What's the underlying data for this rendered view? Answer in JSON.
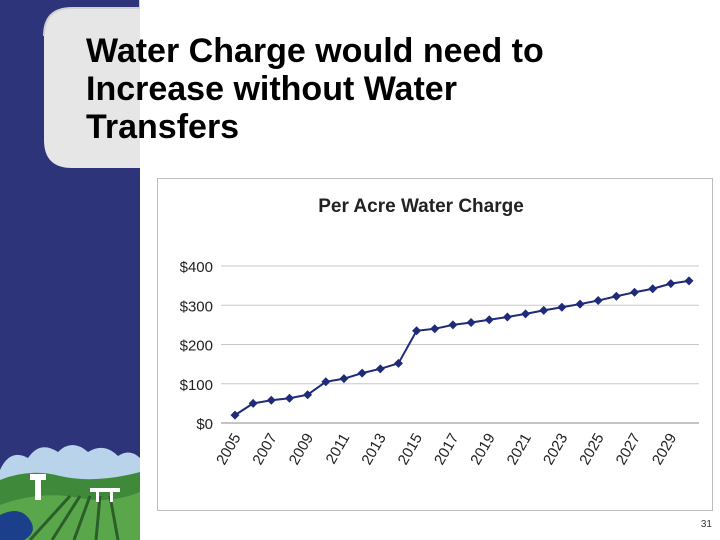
{
  "slide": {
    "title_lines": [
      "Water Charge would need to",
      "Increase without Water",
      "Transfers"
    ],
    "slide_number": "31"
  },
  "chart_data": {
    "type": "line",
    "title": "Per Acre Water Charge",
    "xlabel": "",
    "ylabel": "",
    "x": [
      2005,
      2006,
      2007,
      2008,
      2009,
      2010,
      2011,
      2012,
      2013,
      2014,
      2015,
      2016,
      2017,
      2018,
      2019,
      2020,
      2021,
      2022,
      2023,
      2024,
      2025,
      2026,
      2027,
      2028,
      2029,
      2030
    ],
    "series": [
      {
        "values": [
          20,
          50,
          58,
          63,
          72,
          105,
          113,
          127,
          138,
          152,
          235,
          240,
          250,
          256,
          263,
          270,
          278,
          287,
          295,
          303,
          312,
          323,
          333,
          342,
          355,
          362
        ]
      }
    ],
    "x_tick_labels": [
      "2005",
      "2007",
      "2009",
      "2011",
      "2013",
      "2015",
      "2017",
      "2019",
      "2021",
      "2023",
      "2025",
      "2027",
      "2029"
    ],
    "y_tick_labels": [
      "$0",
      "$100",
      "$200",
      "$300",
      "$400"
    ],
    "ylim": [
      0,
      400
    ],
    "grid": true,
    "legend": "none",
    "colors": {
      "series": "#1f2a78",
      "grid": "#c8c8c8",
      "axis": "#888888"
    }
  },
  "theme": {
    "sidebar_blue": "#2e347a",
    "panel_light": "#e6e6e6"
  }
}
